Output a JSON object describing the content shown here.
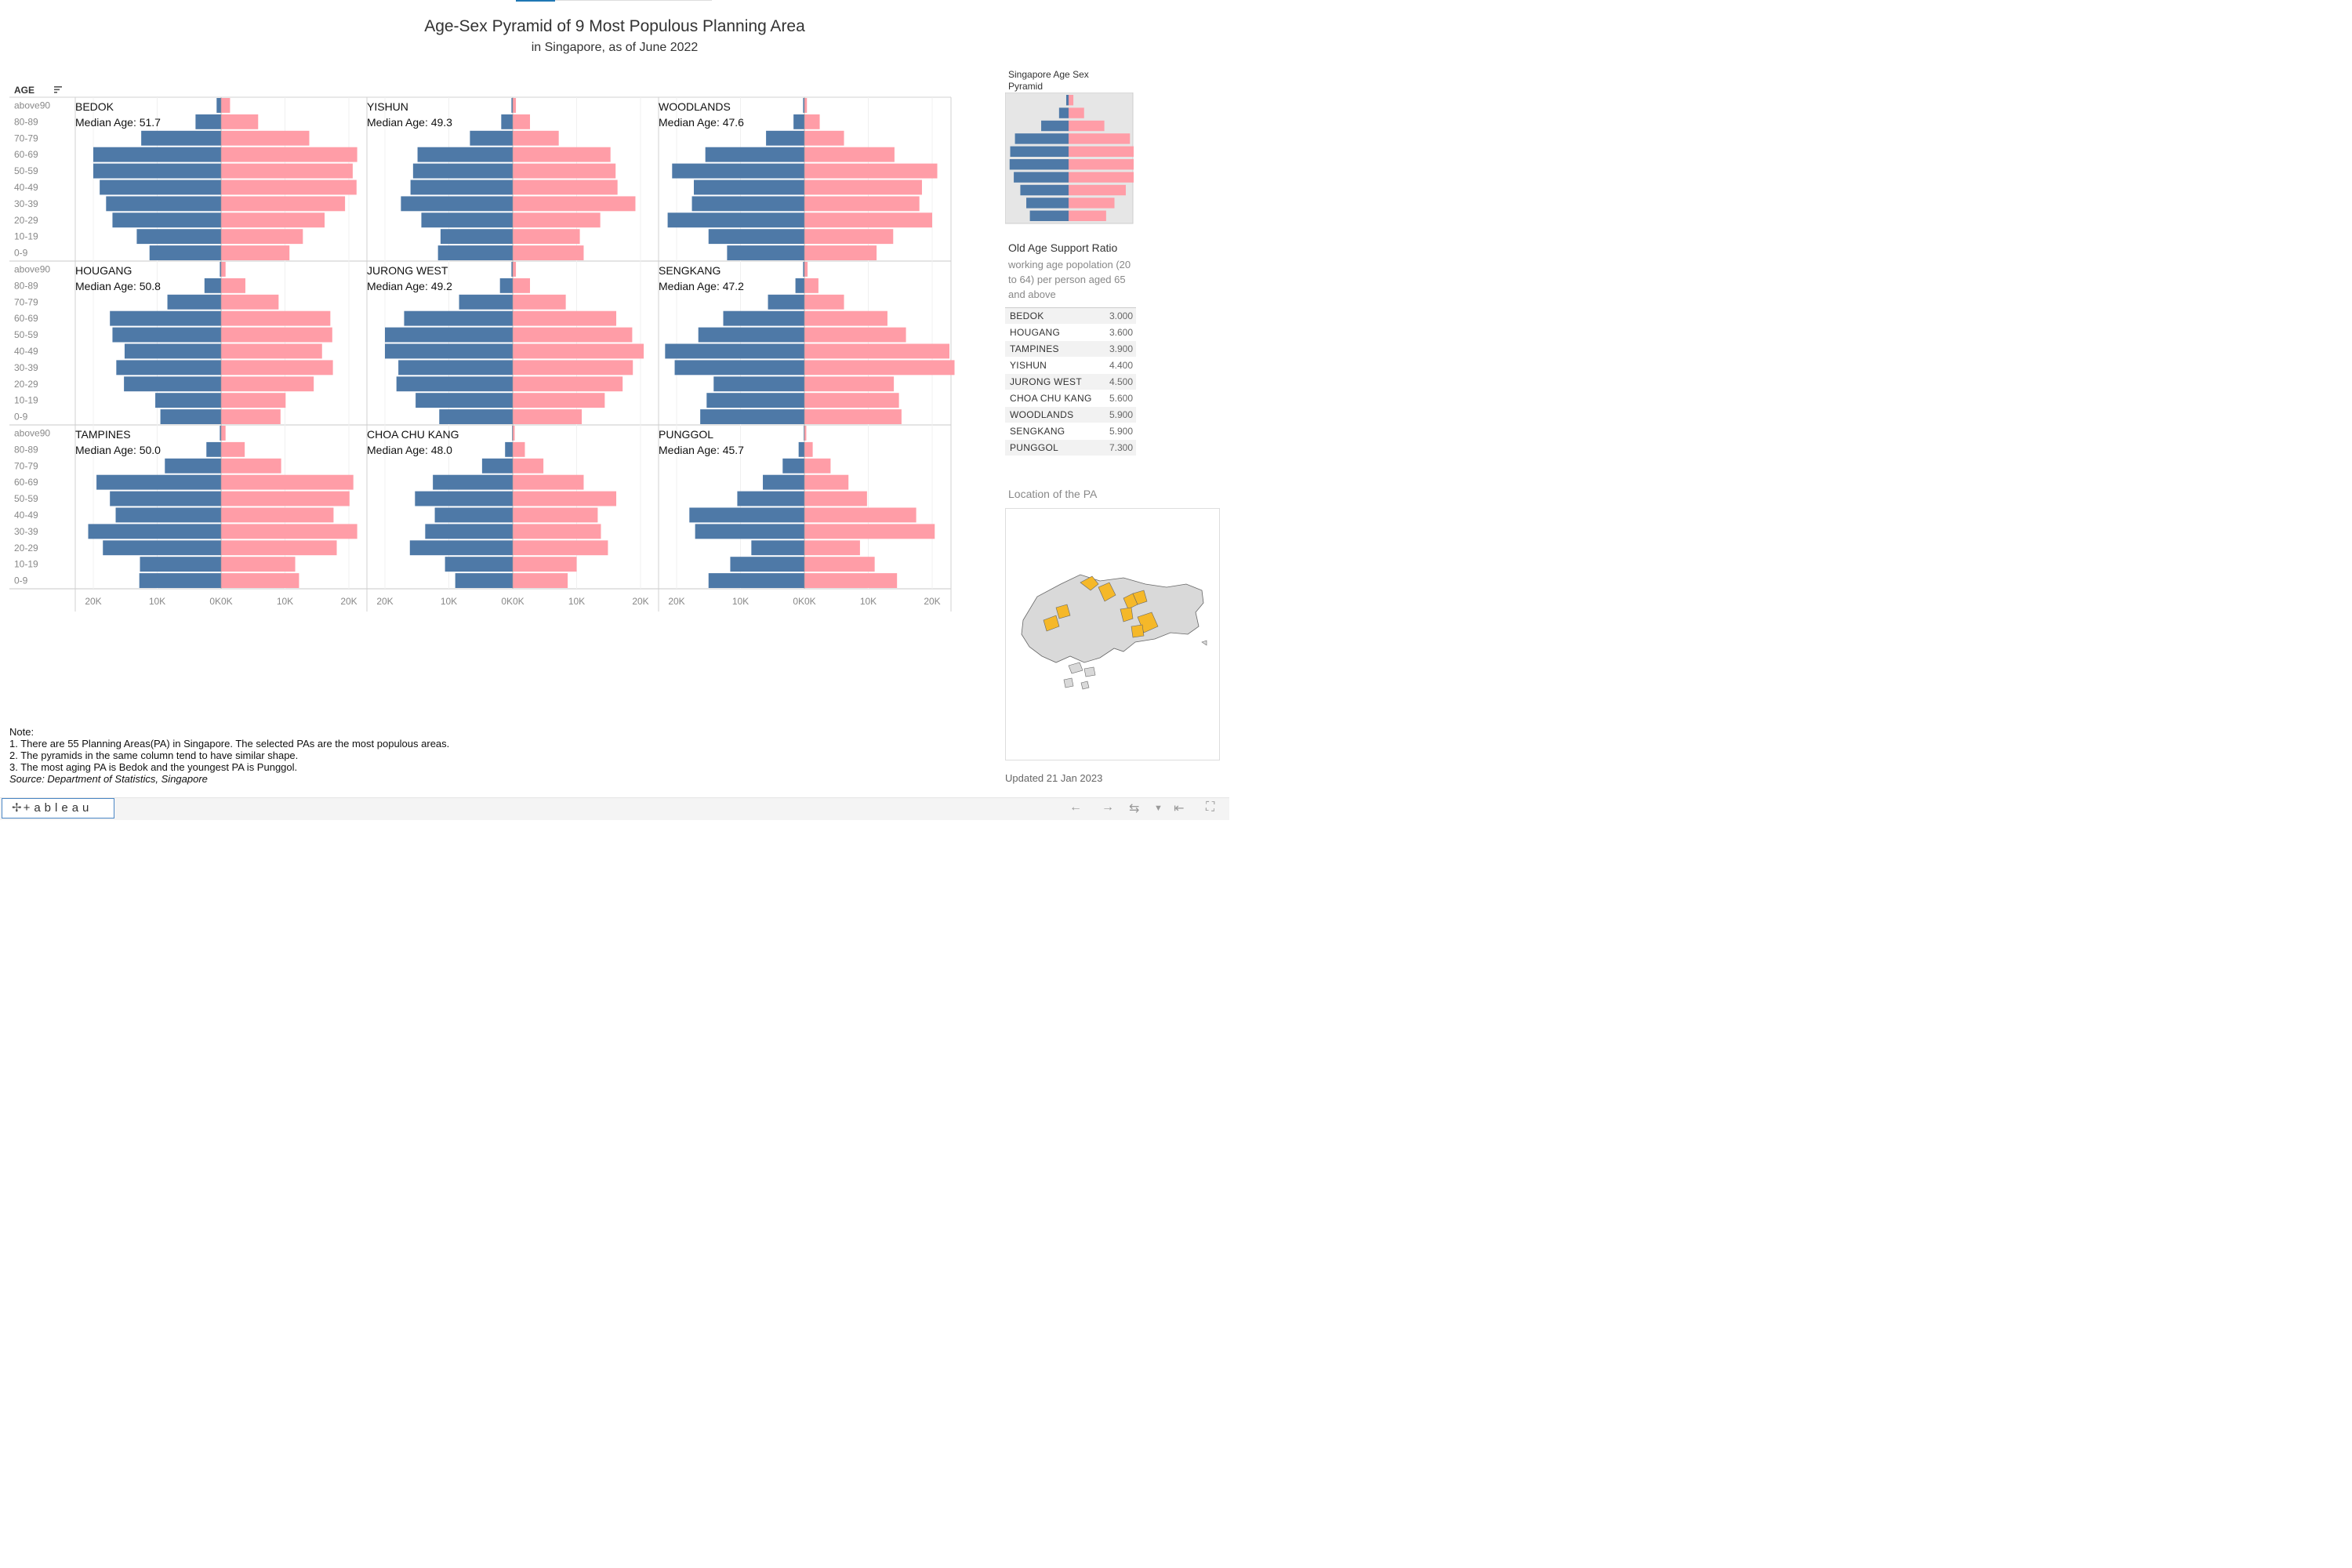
{
  "title": "Age-Sex Pyramid of 9 Most Populous Planning Area",
  "subtitle": "in Singapore, as of June 2022",
  "age_header": "AGE",
  "median_label": "Median Age:",
  "colors": {
    "male": "#4e79a7",
    "female": "#ff9da7",
    "map_highlight": "#f5b829",
    "map_base": "#d9d9d9"
  },
  "chart_data": {
    "type": "bar",
    "subtype": "population pyramid (small multiples)",
    "age_groups": [
      "above90",
      "80-89",
      "70-79",
      "60-69",
      "50-59",
      "40-49",
      "30-39",
      "20-29",
      "10-19",
      "0-9"
    ],
    "xticks": [
      "20K",
      "10K",
      "0K",
      "0K",
      "10K",
      "20K"
    ],
    "xlim": [
      -24000,
      24000
    ],
    "panels": [
      {
        "name": "BEDOK",
        "median_age": "51.7",
        "male": [
          700,
          4000,
          12500,
          20000,
          20000,
          19000,
          18000,
          17000,
          13200,
          11200
        ],
        "female": [
          1400,
          5800,
          13800,
          21300,
          20600,
          21200,
          19400,
          16200,
          12800,
          10700
        ]
      },
      {
        "name": "YISHUN",
        "median_age": "49.3",
        "male": [
          200,
          1800,
          6700,
          14900,
          15600,
          16000,
          17500,
          14300,
          11300,
          11700
        ],
        "female": [
          500,
          2700,
          7200,
          15300,
          16100,
          16400,
          19200,
          13700,
          10500,
          11100
        ]
      },
      {
        "name": "WOODLANDS",
        "median_age": "47.6",
        "male": [
          200,
          1700,
          6000,
          15500,
          20700,
          17300,
          17600,
          21400,
          15000,
          12100
        ],
        "female": [
          400,
          2400,
          6200,
          14100,
          20800,
          18400,
          18000,
          20000,
          13900,
          11300
        ]
      },
      {
        "name": "HOUGANG",
        "median_age": "50.8",
        "male": [
          200,
          2600,
          8400,
          17400,
          17000,
          15100,
          16400,
          15200,
          10300,
          9500
        ],
        "female": [
          700,
          3800,
          9000,
          17100,
          17400,
          15800,
          17500,
          14500,
          10100,
          9300
        ]
      },
      {
        "name": "JURONG WEST",
        "median_age": "49.2",
        "male": [
          200,
          2000,
          8400,
          17000,
          20000,
          20000,
          17900,
          18200,
          15200,
          11500
        ],
        "female": [
          500,
          2700,
          8300,
          16200,
          18700,
          20500,
          18800,
          17200,
          14400,
          10800
        ]
      },
      {
        "name": "SENGKANG",
        "median_age": "47.2",
        "male": [
          200,
          1400,
          5700,
          12700,
          16600,
          21800,
          20300,
          14200,
          15300,
          16300
        ],
        "female": [
          500,
          2200,
          6200,
          13000,
          15900,
          22700,
          23500,
          14000,
          14800,
          15200
        ]
      },
      {
        "name": "TAMPINES",
        "median_age": "50.0",
        "male": [
          200,
          2300,
          8800,
          19500,
          17400,
          16500,
          20800,
          18500,
          12700,
          12800
        ],
        "female": [
          700,
          3700,
          9400,
          20700,
          20100,
          17600,
          21300,
          18100,
          11600,
          12200
        ]
      },
      {
        "name": "CHOA CHU KANG",
        "median_age": "48.0",
        "male": [
          100,
          1200,
          4800,
          12500,
          15300,
          12200,
          13700,
          16100,
          10600,
          9000
        ],
        "female": [
          300,
          1900,
          4800,
          11100,
          16200,
          13300,
          13800,
          14900,
          10000,
          8600
        ]
      },
      {
        "name": "PUNGGOL",
        "median_age": "45.7",
        "male": [
          100,
          900,
          3400,
          6500,
          10500,
          18000,
          17100,
          8300,
          11600,
          15000
        ],
        "female": [
          300,
          1300,
          4100,
          6900,
          9800,
          17500,
          20400,
          8700,
          11000,
          14500
        ]
      }
    ]
  },
  "side": {
    "mini_title": "Singapore Age Sex Pyramid",
    "mini_male": [
      0.4,
      1.6,
      4.6,
      9.0,
      9.8,
      9.9,
      9.2,
      8.1,
      7.1,
      6.5
    ],
    "mini_female": [
      0.8,
      2.6,
      6.0,
      10.3,
      11.1,
      11.7,
      11.3,
      9.6,
      7.7,
      6.3
    ],
    "oasr_title": "Old Age Support Ratio",
    "oasr_sub": "working age popolation (20 to 64) per person aged 65 and above",
    "oasr_rows": [
      {
        "name": "BEDOK",
        "value": "3.000"
      },
      {
        "name": "HOUGANG",
        "value": "3.600"
      },
      {
        "name": "TAMPINES",
        "value": "3.900"
      },
      {
        "name": "YISHUN",
        "value": "4.400"
      },
      {
        "name": "JURONG WEST",
        "value": "4.500"
      },
      {
        "name": "CHOA CHU KANG",
        "value": "5.600"
      },
      {
        "name": "WOODLANDS",
        "value": "5.900"
      },
      {
        "name": "SENGKANG",
        "value": "5.900"
      },
      {
        "name": "PUNGGOL",
        "value": "7.300"
      }
    ],
    "map_title": "Location of the PA",
    "updated": "Updated 21 Jan 2023"
  },
  "notes": {
    "heading": "Note:",
    "lines": [
      "1. There are 55 Planning Areas(PA) in Singapore. The selected PAs are the most populous areas.",
      "2. The pyramids in the same column tend to have similar shape.",
      "3. The most aging PA is Bedok and the youngest PA is Punggol."
    ],
    "source": "Source: Department of Statistics, Singapore"
  },
  "footer": {
    "logo": "+ableau"
  }
}
